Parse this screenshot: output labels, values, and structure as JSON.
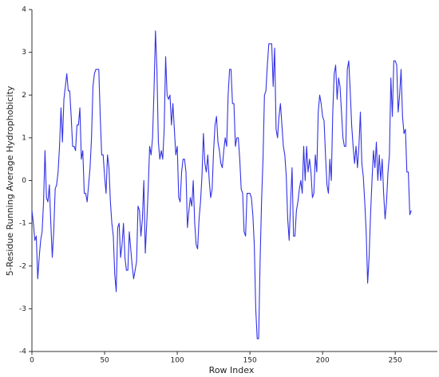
{
  "chart_data": {
    "type": "line",
    "x_label": "Row Index",
    "y_label": "5-Residue Running Average Hydrophobicity",
    "xlim": [
      0,
      279
    ],
    "ylim": [
      -4,
      4
    ],
    "xticks": [
      0,
      50,
      100,
      150,
      200,
      250
    ],
    "yticks": [
      -4,
      -3,
      -2,
      -1,
      0,
      1,
      2,
      3,
      4
    ],
    "grid": false,
    "x": [
      0,
      1,
      2,
      3,
      4,
      5,
      6,
      7,
      8,
      9,
      10,
      11,
      12,
      13,
      14,
      15,
      16,
      17,
      18,
      19,
      20,
      21,
      22,
      23,
      24,
      25,
      26,
      27,
      28,
      29,
      30,
      31,
      32,
      33,
      34,
      35,
      36,
      37,
      38,
      39,
      40,
      41,
      42,
      43,
      44,
      45,
      46,
      47,
      48,
      49,
      50,
      51,
      52,
      53,
      54,
      55,
      56,
      57,
      58,
      59,
      60,
      61,
      62,
      63,
      64,
      65,
      66,
      67,
      68,
      69,
      70,
      71,
      72,
      73,
      74,
      75,
      76,
      77,
      78,
      79,
      80,
      81,
      82,
      83,
      84,
      85,
      86,
      87,
      88,
      89,
      90,
      91,
      92,
      93,
      94,
      95,
      96,
      97,
      98,
      99,
      100,
      101,
      102,
      103,
      104,
      105,
      106,
      107,
      108,
      109,
      110,
      111,
      112,
      113,
      114,
      115,
      116,
      117,
      118,
      119,
      120,
      121,
      122,
      123,
      124,
      125,
      126,
      127,
      128,
      129,
      130,
      131,
      132,
      133,
      134,
      135,
      136,
      137,
      138,
      139,
      140,
      141,
      142,
      143,
      144,
      145,
      146,
      147,
      148,
      149,
      150,
      151,
      152,
      153,
      154,
      155,
      156,
      157,
      158,
      159,
      160,
      161,
      162,
      163,
      164,
      165,
      166,
      167,
      168,
      169,
      170,
      171,
      172,
      173,
      174,
      175,
      176,
      177,
      178,
      179,
      180,
      181,
      182,
      183,
      184,
      185,
      186,
      187,
      188,
      189,
      190,
      191,
      192,
      193,
      194,
      195,
      196,
      197,
      198,
      199,
      200,
      201,
      202,
      203,
      204,
      205,
      206,
      207,
      208,
      209,
      210,
      211,
      212,
      213,
      214,
      215,
      216,
      217,
      218,
      219,
      220,
      221,
      222,
      223,
      224,
      225,
      226,
      227,
      228,
      229,
      230,
      231,
      232,
      233,
      234,
      235,
      236,
      237,
      238,
      239,
      240,
      241,
      242,
      243,
      244,
      245,
      246,
      247,
      248,
      249,
      250,
      251,
      252,
      253,
      254,
      255,
      256,
      257,
      258,
      259,
      260,
      261
    ],
    "series": [
      {
        "color": "#3232e6",
        "values": [
          -0.7,
          -1.0,
          -1.4,
          -1.3,
          -2.3,
          -1.8,
          -1.4,
          -1.2,
          -0.5,
          0.7,
          -0.4,
          -0.5,
          -0.1,
          -1.0,
          -1.8,
          -1.2,
          -0.2,
          -0.1,
          0.2,
          0.8,
          1.7,
          0.9,
          1.9,
          2.2,
          2.5,
          2.1,
          2.1,
          1.5,
          0.8,
          0.8,
          0.7,
          1.3,
          1.3,
          1.7,
          0.5,
          0.7,
          -0.3,
          -0.3,
          -0.5,
          -0.1,
          0.3,
          1.0,
          2.2,
          2.5,
          2.6,
          2.6,
          2.6,
          1.5,
          0.6,
          0.6,
          0.1,
          -0.3,
          0.6,
          0.3,
          -0.5,
          -1.0,
          -1.3,
          -2.2,
          -2.6,
          -1.1,
          -1.0,
          -1.8,
          -1.5,
          -1.0,
          -1.8,
          -2.1,
          -2.1,
          -1.2,
          -1.6,
          -2.0,
          -2.3,
          -2.1,
          -1.9,
          -0.6,
          -0.7,
          -1.3,
          -0.9,
          0.0,
          -1.7,
          -1.0,
          -0.2,
          0.8,
          0.6,
          1.0,
          2.1,
          3.5,
          2.6,
          0.9,
          0.5,
          0.7,
          0.5,
          1.2,
          2.9,
          2.0,
          1.9,
          2.0,
          1.3,
          1.8,
          1.2,
          0.6,
          0.8,
          -0.4,
          -0.5,
          0.2,
          0.5,
          0.5,
          0.2,
          -1.1,
          -0.7,
          -0.4,
          -0.6,
          0.0,
          -1.0,
          -1.5,
          -1.6,
          -0.9,
          -0.5,
          0.1,
          1.1,
          0.4,
          0.2,
          0.6,
          0.0,
          -0.4,
          -0.2,
          0.7,
          1.3,
          1.5,
          0.9,
          0.7,
          0.4,
          0.3,
          0.7,
          1.0,
          0.8,
          2.0,
          2.6,
          2.6,
          1.8,
          1.8,
          0.8,
          1.0,
          1.0,
          0.5,
          -0.2,
          -0.3,
          -1.2,
          -1.3,
          -0.3,
          -0.3,
          -0.3,
          -0.4,
          -0.8,
          -1.5,
          -3.0,
          -3.7,
          -3.7,
          -1.9,
          -0.5,
          0.5,
          2.0,
          2.1,
          2.7,
          3.2,
          3.2,
          3.2,
          2.2,
          3.1,
          1.2,
          1.0,
          1.5,
          1.8,
          1.3,
          0.8,
          0.6,
          0.1,
          -0.9,
          -1.4,
          -0.5,
          0.3,
          -1.3,
          -1.3,
          -0.7,
          -0.5,
          -0.2,
          0.0,
          -0.3,
          0.8,
          0.0,
          0.8,
          0.2,
          0.5,
          0.2,
          -0.4,
          -0.3,
          0.6,
          0.2,
          1.6,
          2.0,
          1.8,
          1.5,
          1.4,
          0.6,
          -0.1,
          -0.3,
          0.5,
          0.0,
          1.6,
          2.5,
          2.7,
          1.9,
          2.4,
          2.2,
          1.6,
          1.0,
          0.8,
          0.8,
          2.6,
          2.8,
          2.1,
          1.3,
          0.8,
          0.4,
          0.8,
          0.3,
          0.8,
          1.6,
          0.4,
          0.1,
          -0.5,
          -1.2,
          -2.4,
          -1.8,
          -0.8,
          0.0,
          0.7,
          0.3,
          0.9,
          0.0,
          0.6,
          0.0,
          0.5,
          -0.3,
          -0.9,
          -0.5,
          0.2,
          0.6,
          2.4,
          1.5,
          2.8,
          2.8,
          2.7,
          1.6,
          2.0,
          2.6,
          1.5,
          1.1,
          1.2,
          0.2,
          0.2,
          -0.8,
          -0.7
        ]
      }
    ]
  }
}
